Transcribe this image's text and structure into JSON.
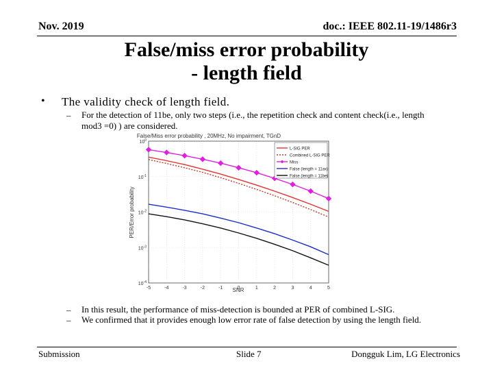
{
  "header": {
    "date": "Nov. 2019",
    "doc_id": "doc.: IEEE 802.11-19/1486r3"
  },
  "title": {
    "line1": "False/miss error probability",
    "line2": "- length field"
  },
  "bullet": {
    "text": "The validity check of length field."
  },
  "sub_top": {
    "dash": "–",
    "text_line1": "For the detection of 11be, only two steps (i.e., the repetition check and content check(i.e., length",
    "text_line2": "mod3 =0) ) are considered."
  },
  "sub_bottom": [
    {
      "dash": "–",
      "text": "In this result, the performance of miss-detection is bounded at PER of combined L-SIG."
    },
    {
      "dash": "–",
      "text": "We confirmed that it provides enough low error rate of false detection by using the length field."
    }
  ],
  "footer": {
    "left": "Submission",
    "center": "Slide 7",
    "right": "Dongguk Lim, LG Electronics"
  },
  "chart_data": {
    "type": "line",
    "title": "False/Miss error probability , 20MHz, No impairment, TGnD",
    "xlabel": "SNR",
    "ylabel": "PER/Error probability",
    "x": [
      -5,
      -4,
      -3,
      -2,
      -1,
      0,
      1,
      2,
      3,
      4,
      5
    ],
    "xlim": [
      -5,
      5
    ],
    "ylim_exp": [
      -4,
      0
    ],
    "x_tick_labels": [
      "-5",
      "-4",
      "-3",
      "-2",
      "-1",
      "0",
      "1",
      "2",
      "3",
      "4",
      "5"
    ],
    "y_tick_labels": [
      {
        "base": "10",
        "exp": "0"
      },
      {
        "base": "10",
        "exp": "-1"
      },
      {
        "base": "10",
        "exp": "-2"
      },
      {
        "base": "10",
        "exp": "-3"
      },
      {
        "base": "10",
        "exp": "-4"
      }
    ],
    "series": [
      {
        "name": "L-SIG PER",
        "color": "#e8302f",
        "dash": "",
        "marker": "none",
        "log10_values": [
          -0.45,
          -0.55,
          -0.66,
          -0.79,
          -0.93,
          -1.08,
          -1.24,
          -1.41,
          -1.59,
          -1.78,
          -1.98
        ]
      },
      {
        "name": "Combined L-SIG PER",
        "color": "#c0392b",
        "dash": "2,2",
        "marker": "none",
        "log10_values": [
          -0.52,
          -0.63,
          -0.75,
          -0.88,
          -1.03,
          -1.19,
          -1.36,
          -1.54,
          -1.73,
          -1.93,
          -2.14
        ]
      },
      {
        "name": "Miss",
        "color": "#e020e0",
        "dash": "",
        "marker": "diamond",
        "log10_values": [
          -0.24,
          -0.32,
          -0.41,
          -0.51,
          -0.62,
          -0.75,
          -0.89,
          -1.05,
          -1.22,
          -1.41,
          -1.62
        ]
      },
      {
        "name": "False (length = 11ax)",
        "color": "#1a2bd0",
        "dash": "",
        "marker": "none",
        "log10_values": [
          -1.78,
          -1.86,
          -1.95,
          -2.05,
          -2.17,
          -2.3,
          -2.45,
          -2.61,
          -2.79,
          -2.98,
          -3.2
        ]
      },
      {
        "name": "False (length = 11be)",
        "color": "#111111",
        "dash": "",
        "marker": "none",
        "log10_values": [
          -2.05,
          -2.13,
          -2.22,
          -2.33,
          -2.45,
          -2.59,
          -2.74,
          -2.91,
          -3.09,
          -3.29,
          -3.5
        ]
      }
    ]
  }
}
